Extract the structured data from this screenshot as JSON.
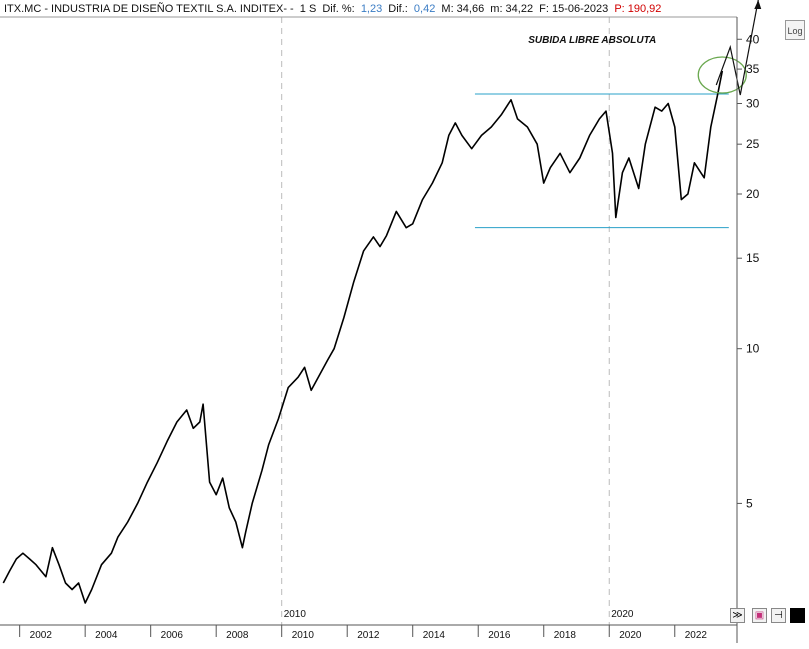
{
  "header": {
    "ticker": "ITX.MC - INDUSTRIA DE DISEÑO TEXTIL S.A. INDITEX- -",
    "period": "1 S",
    "dif_pct_label": "Dif. %:",
    "dif_pct_value": "1,23",
    "dif_label": "Dif.:",
    "dif_value": "0,42",
    "max_label": "M: 34,66",
    "min_label": "m: 34,22",
    "date_label": "F: 15-06-2023",
    "p_label": "P: 190,92"
  },
  "toolbar": {
    "log_label": "Log"
  },
  "colors": {
    "price": "#000000",
    "support_lines": "#2aa0c8",
    "ellipse": "#6aa84f",
    "background": "#ffffff"
  },
  "chart_data": {
    "type": "line",
    "title": "",
    "annotation": "SUBIDA LIBRE ABSOLUTA",
    "xlabel": "",
    "ylabel": "",
    "y_scale": "log",
    "ylim": [
      2.9,
      44
    ],
    "xlim": [
      2001.4,
      2023.9
    ],
    "y_ticks": [
      5,
      10,
      15,
      20,
      25,
      30,
      35,
      40
    ],
    "x_ticks": [
      2002,
      2004,
      2006,
      2008,
      2010,
      2012,
      2014,
      2016,
      2018,
      2020,
      2022
    ],
    "x_marker_labels": [
      "2010",
      "2020"
    ],
    "horizontal_lines": [
      31.3,
      17.2
    ],
    "series": [
      {
        "x": [
          2001.5,
          2001.7,
          2001.9,
          2002.1,
          2002.3,
          2002.5,
          2002.8,
          2003.0,
          2003.2,
          2003.4,
          2003.6,
          2003.8,
          2004.0,
          2004.2,
          2004.5,
          2004.8,
          2005.0,
          2005.3,
          2005.6,
          2005.9,
          2006.2,
          2006.5,
          2006.8,
          2007.1,
          2007.3,
          2007.5,
          2007.6,
          2007.8,
          2008.0,
          2008.2,
          2008.4,
          2008.6,
          2008.8,
          2008.9,
          2009.1,
          2009.4,
          2009.6,
          2009.9,
          2010.2,
          2010.5,
          2010.7,
          2010.9,
          2011.2,
          2011.4,
          2011.6,
          2011.9,
          2012.2,
          2012.5,
          2012.8,
          2013.0,
          2013.2,
          2013.5,
          2013.8,
          2014.0,
          2014.3,
          2014.6,
          2014.9,
          2015.1,
          2015.3,
          2015.5,
          2015.8,
          2016.1,
          2016.4,
          2016.7,
          2017.0,
          2017.2,
          2017.5,
          2017.8,
          2018.0,
          2018.2,
          2018.5,
          2018.8,
          2019.1,
          2019.4,
          2019.7,
          2019.9,
          2020.1,
          2020.2,
          2020.4,
          2020.6,
          2020.9,
          2021.1,
          2021.4,
          2021.6,
          2021.8,
          2022.0,
          2022.2,
          2022.4,
          2022.6,
          2022.9,
          2023.1,
          2023.3,
          2023.45
        ],
        "values": [
          3.5,
          3.7,
          3.9,
          4.0,
          3.9,
          3.8,
          3.6,
          4.1,
          3.8,
          3.5,
          3.4,
          3.5,
          3.2,
          3.4,
          3.8,
          4.0,
          4.3,
          4.6,
          5.0,
          5.5,
          6.0,
          6.6,
          7.2,
          7.6,
          7.0,
          7.2,
          7.8,
          5.5,
          5.2,
          5.6,
          4.9,
          4.6,
          4.1,
          4.4,
          5.0,
          5.8,
          6.5,
          7.3,
          8.4,
          8.8,
          9.2,
          8.3,
          9.0,
          9.5,
          10.0,
          11.5,
          13.5,
          15.5,
          16.5,
          15.8,
          16.6,
          18.5,
          17.2,
          17.5,
          19.5,
          21.0,
          23.0,
          26.0,
          27.5,
          26.0,
          24.5,
          26.0,
          27.0,
          28.5,
          30.5,
          28.0,
          27.0,
          25.0,
          21.0,
          22.5,
          24.0,
          22.0,
          23.5,
          26.0,
          28.0,
          29.0,
          24.0,
          18.0,
          22.0,
          23.5,
          20.5,
          25.0,
          29.5,
          29.0,
          30.0,
          27.0,
          19.5,
          20.0,
          23.0,
          21.5,
          27.0,
          31.0,
          34.7
        ]
      }
    ]
  }
}
